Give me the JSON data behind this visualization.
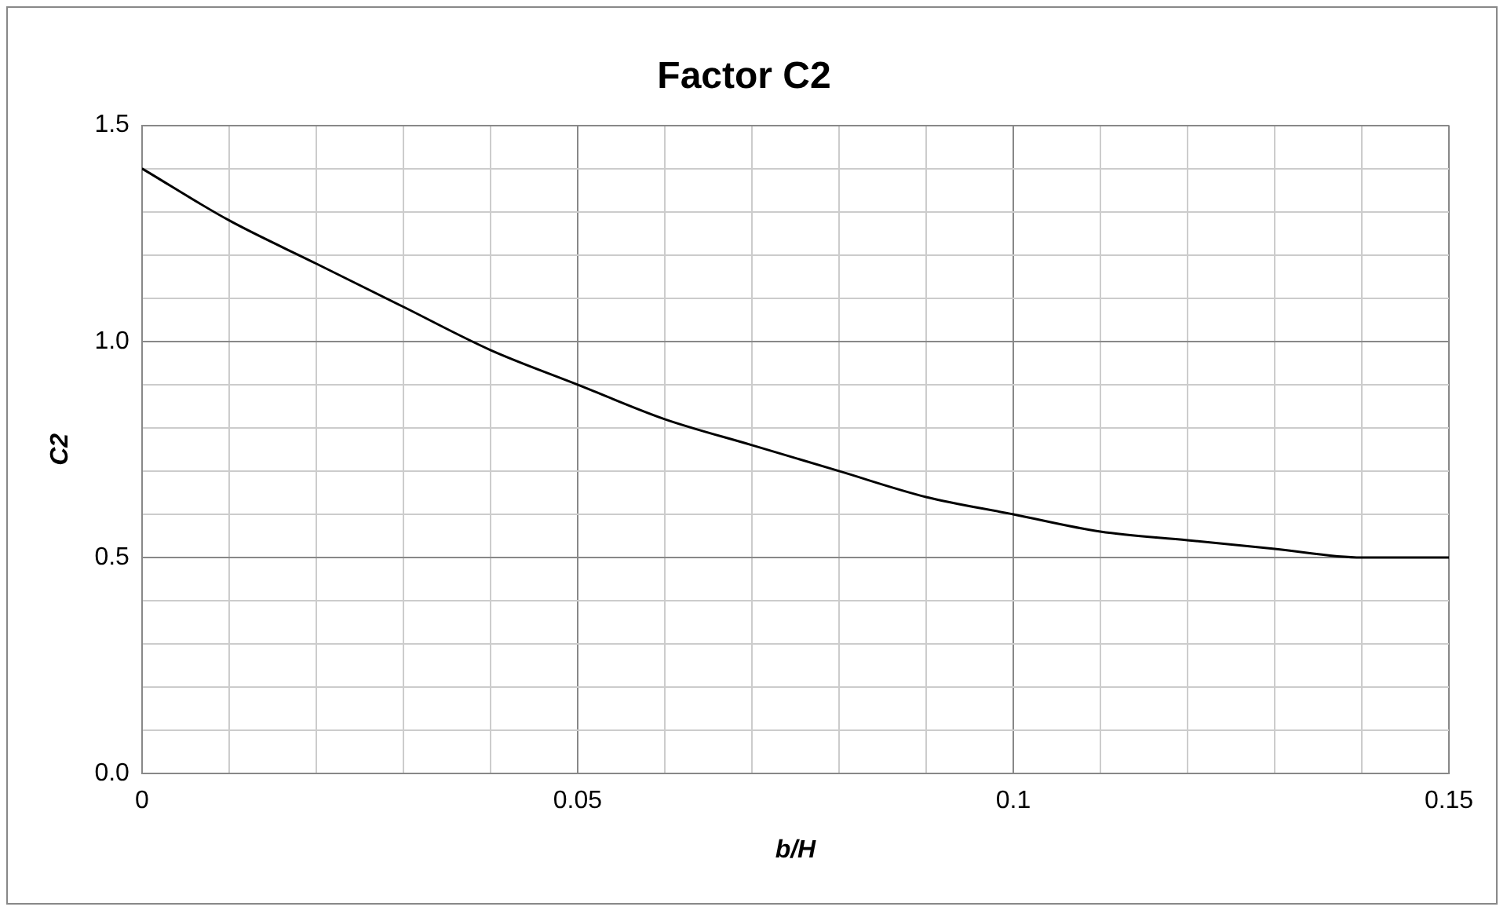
{
  "chart_data": {
    "type": "line",
    "title": "Factor C2",
    "xlabel": "b/H",
    "ylabel": "C2",
    "x": [
      0,
      0.01,
      0.02,
      0.03,
      0.04,
      0.05,
      0.06,
      0.07,
      0.08,
      0.09,
      0.1,
      0.11,
      0.12,
      0.13,
      0.14,
      0.15
    ],
    "series": [
      {
        "color": "#000000",
        "values": [
          1.4,
          1.28,
          1.18,
          1.08,
          0.98,
          0.9,
          0.82,
          0.76,
          0.7,
          0.64,
          0.6,
          0.56,
          0.54,
          0.52,
          0.5,
          0.5
        ]
      }
    ],
    "xlim": [
      0,
      0.15
    ],
    "xticks": [
      0,
      {
        "value": 0.01,
        "label": null
      },
      {
        "value": 0.02,
        "label": null
      },
      {
        "value": 0.03,
        "label": null
      },
      {
        "value": 0.04,
        "label": null
      },
      0.05,
      {
        "value": 0.06,
        "label": null
      },
      {
        "value": 0.07,
        "label": null
      },
      {
        "value": 0.08,
        "label": null
      },
      {
        "value": 0.09,
        "label": null
      },
      0.1,
      {
        "value": 0.11,
        "label": null
      },
      {
        "value": 0.12,
        "label": null
      },
      {
        "value": 0.13,
        "label": null
      },
      {
        "value": 0.14,
        "label": null
      },
      0.15
    ],
    "ylim": [
      0,
      1.5
    ],
    "yticks": [
      {
        "value": 0,
        "label": "0.0"
      },
      {
        "value": 0.1,
        "label": null
      },
      {
        "value": 0.2,
        "label": null
      },
      {
        "value": 0.3,
        "label": null
      },
      {
        "value": 0.4,
        "label": null
      },
      {
        "value": 0.5,
        "label": "0.5"
      },
      {
        "value": 0.6,
        "label": null
      },
      {
        "value": 0.7,
        "label": null
      },
      {
        "value": 0.8,
        "label": null
      },
      {
        "value": 0.9,
        "label": null
      },
      {
        "value": 1,
        "label": "1.0"
      },
      {
        "value": 1.1,
        "label": null
      },
      {
        "value": 1.2,
        "label": null
      },
      {
        "value": 1.3,
        "label": null
      },
      {
        "value": 1.4,
        "label": null
      },
      {
        "value": 1.5,
        "label": "1.5"
      }
    ],
    "grid": true,
    "legend": false,
    "marker": "none",
    "line_style": "solid"
  }
}
